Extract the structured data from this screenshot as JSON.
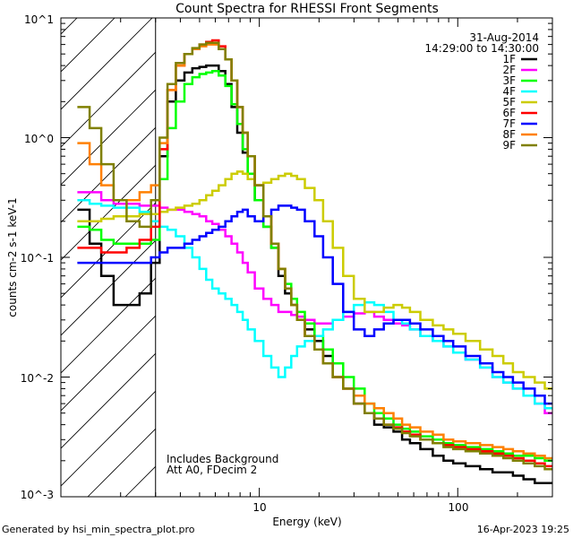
{
  "chart_data": {
    "type": "line",
    "title": "Count Spectra for RHESSI Front Segments",
    "xlabel": "Energy (keV)",
    "ylabel": "counts cm-2 s-1 keV-1",
    "xscale": "log",
    "yscale": "log",
    "xlim": [
      1.0,
      300.0
    ],
    "ylim": [
      0.001,
      10.0
    ],
    "x_tick_labels": [
      "10",
      "100"
    ],
    "y_tick_labels": [
      "10^1",
      "10^0",
      "10^-1",
      "10^-2",
      "10^-3"
    ],
    "date": "31-Aug-2014",
    "time_range": "14:29:00 to 14:30:00",
    "annotations": [
      "Includes Background",
      "Att A0, FDecim 2"
    ],
    "footer_left": "Generated by hsi_min_spectra_plot.pro",
    "footer_right": "16-Apr-2023 19:25",
    "shaded_region_upper_keV": 3.0,
    "x": [
      1.3,
      1.5,
      1.7,
      2.0,
      2.3,
      2.7,
      3.0,
      3.3,
      3.6,
      4.0,
      4.4,
      4.8,
      5.2,
      5.6,
      6.0,
      6.5,
      7.0,
      7.5,
      8.0,
      8.5,
      9.0,
      10.0,
      11.0,
      12.0,
      13.0,
      14.0,
      15.0,
      16.0,
      18.0,
      20.0,
      22.0,
      25.0,
      28.0,
      32.0,
      36.0,
      40.0,
      45.0,
      50.0,
      55.0,
      60.0,
      70.0,
      80.0,
      90.0,
      100.0,
      120.0,
      140.0,
      160.0,
      180.0,
      200.0,
      230.0,
      260.0,
      290.0
    ],
    "series": [
      {
        "name": "1F",
        "color": "#000000",
        "values": [
          0.25,
          0.13,
          0.07,
          0.04,
          0.04,
          0.05,
          0.09,
          0.7,
          2.0,
          3.0,
          3.5,
          3.8,
          3.9,
          4.0,
          4.0,
          3.6,
          2.8,
          1.8,
          1.1,
          0.75,
          0.5,
          0.3,
          0.18,
          0.12,
          0.07,
          0.05,
          0.04,
          0.03,
          0.025,
          0.02,
          0.015,
          0.01,
          0.008,
          0.006,
          0.005,
          0.004,
          0.0038,
          0.0035,
          0.003,
          0.0028,
          0.0025,
          0.0022,
          0.002,
          0.0019,
          0.0018,
          0.0017,
          0.0016,
          0.0016,
          0.0015,
          0.0014,
          0.0013,
          0.0013
        ]
      },
      {
        "name": "2F",
        "color": "#ff00ff",
        "values": [
          0.35,
          0.35,
          0.3,
          0.28,
          0.28,
          0.27,
          0.27,
          0.26,
          0.25,
          0.25,
          0.24,
          0.23,
          0.22,
          0.2,
          0.19,
          0.17,
          0.15,
          0.13,
          0.11,
          0.09,
          0.075,
          0.055,
          0.045,
          0.04,
          0.035,
          0.035,
          0.033,
          0.032,
          0.03,
          0.028,
          0.028,
          0.03,
          0.032,
          0.034,
          0.035,
          0.032,
          0.03,
          0.028,
          0.027,
          0.025,
          0.022,
          0.02,
          0.018,
          0.016,
          0.014,
          0.012,
          0.01,
          0.009,
          0.008,
          0.007,
          0.006,
          0.005
        ]
      },
      {
        "name": "3F",
        "color": "#00ff00",
        "values": [
          0.18,
          0.17,
          0.14,
          0.13,
          0.13,
          0.13,
          0.14,
          0.45,
          1.2,
          2.0,
          2.8,
          3.2,
          3.4,
          3.5,
          3.6,
          3.3,
          2.7,
          1.9,
          1.3,
          0.8,
          0.5,
          0.3,
          0.18,
          0.12,
          0.08,
          0.06,
          0.045,
          0.035,
          0.028,
          0.022,
          0.017,
          0.013,
          0.01,
          0.008,
          0.006,
          0.005,
          0.0045,
          0.004,
          0.0037,
          0.0035,
          0.0032,
          0.003,
          0.0028,
          0.0027,
          0.0026,
          0.0025,
          0.0024,
          0.0023,
          0.0022,
          0.0022,
          0.0021,
          0.002
        ]
      },
      {
        "name": "4F",
        "color": "#00ffff",
        "values": [
          0.3,
          0.28,
          0.27,
          0.26,
          0.26,
          0.24,
          0.2,
          0.18,
          0.17,
          0.15,
          0.12,
          0.1,
          0.08,
          0.065,
          0.055,
          0.05,
          0.045,
          0.04,
          0.035,
          0.03,
          0.025,
          0.02,
          0.015,
          0.012,
          0.01,
          0.012,
          0.015,
          0.018,
          0.02,
          0.022,
          0.025,
          0.03,
          0.035,
          0.04,
          0.042,
          0.04,
          0.035,
          0.03,
          0.028,
          0.025,
          0.022,
          0.02,
          0.018,
          0.016,
          0.014,
          0.012,
          0.01,
          0.009,
          0.008,
          0.007,
          0.006,
          0.0055
        ]
      },
      {
        "name": "5F",
        "color": "#cccc00",
        "values": [
          0.2,
          0.2,
          0.21,
          0.22,
          0.22,
          0.23,
          0.23,
          0.24,
          0.25,
          0.26,
          0.27,
          0.28,
          0.3,
          0.33,
          0.36,
          0.4,
          0.45,
          0.5,
          0.52,
          0.5,
          0.45,
          0.4,
          0.42,
          0.45,
          0.48,
          0.5,
          0.48,
          0.45,
          0.38,
          0.3,
          0.2,
          0.12,
          0.07,
          0.045,
          0.035,
          0.035,
          0.038,
          0.04,
          0.038,
          0.035,
          0.03,
          0.027,
          0.025,
          0.023,
          0.02,
          0.017,
          0.015,
          0.013,
          0.011,
          0.01,
          0.009,
          0.008
        ]
      },
      {
        "name": "6F",
        "color": "#ff0000",
        "values": [
          0.12,
          0.12,
          0.11,
          0.11,
          0.12,
          0.14,
          0.18,
          0.8,
          2.5,
          4.0,
          5.0,
          5.5,
          6.0,
          6.3,
          6.5,
          5.8,
          4.5,
          3.0,
          1.8,
          1.1,
          0.7,
          0.4,
          0.22,
          0.13,
          0.08,
          0.055,
          0.04,
          0.03,
          0.022,
          0.017,
          0.013,
          0.01,
          0.008,
          0.006,
          0.005,
          0.0045,
          0.004,
          0.0038,
          0.0035,
          0.0033,
          0.003,
          0.0028,
          0.0027,
          0.0026,
          0.0025,
          0.0024,
          0.0023,
          0.0022,
          0.0021,
          0.002,
          0.0019,
          0.0018
        ]
      },
      {
        "name": "7F",
        "color": "#0000ff",
        "values": [
          0.09,
          0.09,
          0.09,
          0.09,
          0.09,
          0.09,
          0.1,
          0.11,
          0.12,
          0.12,
          0.13,
          0.14,
          0.15,
          0.16,
          0.17,
          0.18,
          0.2,
          0.22,
          0.24,
          0.25,
          0.22,
          0.2,
          0.22,
          0.25,
          0.27,
          0.27,
          0.26,
          0.25,
          0.2,
          0.15,
          0.1,
          0.06,
          0.035,
          0.025,
          0.022,
          0.025,
          0.028,
          0.03,
          0.03,
          0.028,
          0.025,
          0.022,
          0.02,
          0.018,
          0.015,
          0.013,
          0.011,
          0.01,
          0.009,
          0.008,
          0.007,
          0.006
        ]
      },
      {
        "name": "8F",
        "color": "#ff8000",
        "values": [
          0.9,
          0.6,
          0.4,
          0.3,
          0.3,
          0.35,
          0.4,
          0.9,
          2.5,
          4.0,
          5.0,
          5.5,
          5.8,
          6.0,
          6.0,
          5.5,
          4.5,
          3.0,
          1.8,
          1.1,
          0.7,
          0.4,
          0.22,
          0.13,
          0.08,
          0.055,
          0.04,
          0.03,
          0.022,
          0.017,
          0.013,
          0.01,
          0.008,
          0.007,
          0.006,
          0.0055,
          0.005,
          0.0045,
          0.004,
          0.0038,
          0.0035,
          0.0033,
          0.003,
          0.0029,
          0.0028,
          0.0027,
          0.0026,
          0.0025,
          0.0024,
          0.0023,
          0.0022,
          0.0021
        ]
      },
      {
        "name": "9F",
        "color": "#808000",
        "values": [
          1.8,
          1.2,
          0.6,
          0.3,
          0.2,
          0.18,
          0.3,
          1.0,
          2.8,
          4.2,
          5.0,
          5.6,
          6.0,
          6.2,
          6.2,
          5.5,
          4.5,
          3.0,
          1.8,
          1.1,
          0.7,
          0.4,
          0.22,
          0.13,
          0.08,
          0.055,
          0.04,
          0.03,
          0.022,
          0.017,
          0.013,
          0.01,
          0.008,
          0.006,
          0.005,
          0.0045,
          0.004,
          0.0037,
          0.0034,
          0.0032,
          0.003,
          0.0028,
          0.0026,
          0.0025,
          0.0024,
          0.0023,
          0.0022,
          0.0021,
          0.002,
          0.0019,
          0.0018,
          0.0017
        ]
      }
    ]
  }
}
